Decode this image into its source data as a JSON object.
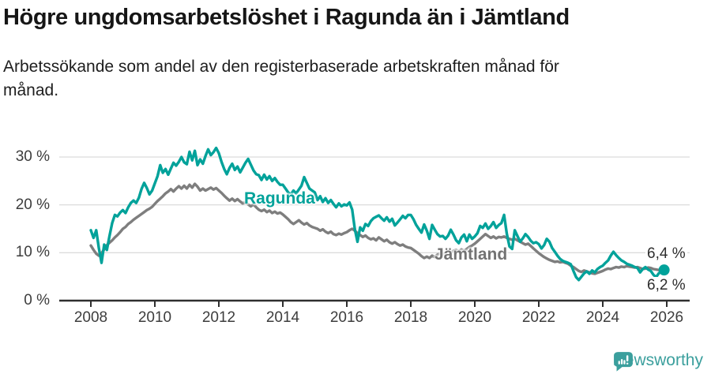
{
  "header": {
    "title": "Högre ungdomsarbetslöshet i Ragunda än i Jämtland",
    "subtitle": "Arbetssökande som andel av den registerbaserade arbetskraften månad för månad."
  },
  "chart_data": {
    "type": "line",
    "title": "Högre ungdomsarbetslöshet i Ragunda än i Jämtland",
    "subtitle": "Arbetssökande som andel av den registerbaserade arbetskraften månad för månad.",
    "unit": "%",
    "x_start_year": 2008,
    "x_step_months": 1,
    "ylim": [
      0,
      33
    ],
    "grid": "horizontal",
    "y_ticks": [
      {
        "v": 0,
        "label": "0 %"
      },
      {
        "v": 10,
        "label": "10 %"
      },
      {
        "v": 20,
        "label": "20 %"
      },
      {
        "v": 30,
        "label": "30 %"
      }
    ],
    "x_ticks": [
      {
        "v": 2008,
        "label": "2008"
      },
      {
        "v": 2010,
        "label": "2010"
      },
      {
        "v": 2012,
        "label": "2012"
      },
      {
        "v": 2014,
        "label": "2014"
      },
      {
        "v": 2016,
        "label": "2016"
      },
      {
        "v": 2018,
        "label": "2018"
      },
      {
        "v": 2020,
        "label": "2020"
      },
      {
        "v": 2022,
        "label": "2022"
      },
      {
        "v": 2024,
        "label": "2024"
      },
      {
        "v": 2026,
        "label": "2026"
      }
    ],
    "series": [
      {
        "name": "Ragunda",
        "color": "#00a29a",
        "end_label": "6,4 %",
        "end_dot": true,
        "values": [
          14.7,
          13.1,
          14.7,
          11.0,
          7.9,
          11.7,
          10.6,
          13.5,
          16.2,
          17.9,
          17.6,
          18.4,
          18.9,
          18.3,
          19.5,
          20.4,
          20.9,
          20.4,
          21.5,
          23.3,
          24.6,
          23.5,
          22.2,
          23.0,
          24.5,
          26.0,
          28.3,
          26.7,
          27.5,
          26.3,
          27.6,
          28.8,
          28.2,
          29.0,
          30.0,
          28.9,
          28.5,
          31.1,
          29.3,
          31.3,
          28.3,
          29.5,
          28.6,
          30.2,
          31.6,
          30.4,
          31.0,
          31.9,
          30.8,
          29.0,
          27.5,
          26.4,
          27.7,
          28.6,
          27.3,
          28.0,
          26.8,
          27.8,
          28.8,
          29.6,
          28.4,
          27.2,
          26.4,
          26.2,
          25.2,
          26.3,
          25.3,
          26.0,
          25.0,
          25.6,
          24.8,
          24.2,
          24.2,
          23.4,
          22.6,
          22.2,
          23.0,
          22.4,
          23.2,
          24.0,
          25.8,
          24.6,
          23.4,
          23.0,
          22.6,
          21.0,
          21.8,
          20.6,
          21.4,
          20.4,
          21.0,
          20.2,
          19.5,
          20.3,
          19.7,
          20.1,
          19.9,
          20.5,
          19.0,
          15.0,
          12.3,
          15.3,
          14.6,
          16.0,
          15.6,
          16.6,
          17.2,
          17.5,
          17.8,
          17.2,
          16.7,
          17.4,
          16.5,
          17.1,
          15.7,
          16.3,
          17.0,
          17.7,
          17.2,
          17.9,
          17.9,
          17.0,
          15.8,
          15.0,
          14.2,
          15.9,
          14.6,
          12.9,
          15.8,
          14.8,
          13.9,
          13.4,
          13.5,
          12.9,
          13.6,
          14.8,
          13.8,
          12.6,
          12.0,
          13.2,
          13.8,
          12.4,
          13.8,
          12.9,
          13.4,
          14.1,
          15.6,
          15.2,
          16.1,
          15.0,
          15.6,
          16.4,
          15.2,
          15.8,
          16.2,
          17.9,
          14.0,
          11.3,
          10.8,
          14.7,
          13.5,
          12.3,
          13.0,
          13.9,
          13.3,
          12.5,
          12.0,
          12.2,
          11.8,
          10.9,
          11.6,
          12.9,
          12.3,
          11.0,
          10.2,
          9.4,
          8.7,
          8.3,
          8.1,
          7.9,
          7.6,
          6.2,
          4.9,
          4.3,
          5.0,
          5.7,
          6.1,
          5.6,
          6.3,
          5.9,
          6.6,
          7.0,
          7.3,
          7.9,
          8.4,
          9.4,
          10.2,
          9.5,
          8.9,
          8.4,
          8.1,
          7.7,
          7.5,
          7.3,
          7.0,
          6.8,
          5.9,
          6.6,
          7.0,
          6.5,
          6.2,
          5.4,
          4.9,
          5.7,
          6.1,
          6.4
        ]
      },
      {
        "name": "Jämtland",
        "color": "#7e7e7e",
        "end_label": "6,2 %",
        "end_dot": false,
        "values": [
          11.5,
          10.6,
          9.8,
          9.4,
          9.9,
          10.7,
          11.6,
          12.1,
          12.6,
          13.2,
          13.7,
          14.3,
          15.0,
          15.4,
          16.0,
          16.4,
          16.9,
          17.3,
          17.7,
          18.1,
          18.5,
          18.9,
          19.2,
          19.6,
          20.2,
          20.8,
          21.3,
          21.8,
          22.4,
          22.8,
          23.3,
          22.8,
          23.4,
          23.9,
          23.4,
          24.0,
          23.4,
          24.2,
          23.6,
          24.4,
          23.8,
          23.0,
          23.4,
          23.0,
          23.3,
          23.6,
          23.2,
          23.5,
          23.0,
          22.5,
          21.9,
          21.4,
          20.9,
          21.3,
          20.8,
          21.2,
          20.7,
          20.3,
          20.6,
          20.1,
          19.7,
          20.1,
          19.5,
          19.0,
          18.7,
          19.0,
          18.5,
          18.8,
          18.3,
          18.6,
          18.2,
          18.4,
          18.0,
          17.5,
          17.0,
          16.4,
          16.0,
          16.4,
          16.8,
          16.3,
          15.9,
          16.2,
          15.7,
          15.4,
          15.2,
          15.0,
          14.6,
          14.9,
          14.4,
          14.1,
          14.4,
          13.9,
          13.7,
          14.0,
          13.8,
          14.1,
          14.3,
          14.7,
          15.0,
          14.6,
          14.1,
          13.7,
          13.3,
          13.6,
          13.1,
          12.8,
          13.0,
          12.6,
          13.2,
          12.8,
          12.4,
          12.7,
          12.2,
          11.9,
          12.2,
          11.8,
          11.5,
          11.7,
          11.3,
          11.1,
          11.0,
          10.6,
          10.2,
          9.8,
          9.3,
          8.9,
          9.2,
          8.9,
          9.4,
          9.1,
          9.6,
          9.9,
          9.7,
          10.0,
          10.3,
          10.0,
          10.4,
          10.6,
          10.3,
          10.7,
          10.4,
          10.8,
          11.2,
          11.5,
          11.9,
          12.4,
          12.9,
          13.4,
          13.9,
          13.5,
          13.1,
          13.4,
          13.0,
          13.3,
          13.2,
          13.4,
          13.1,
          12.9,
          12.7,
          12.9,
          12.6,
          12.3,
          12.0,
          11.7,
          11.9,
          11.4,
          10.9,
          10.4,
          9.9,
          9.5,
          9.1,
          8.8,
          8.5,
          8.3,
          8.1,
          8.2,
          8.0,
          8.1,
          7.9,
          7.7,
          7.3,
          7.0,
          6.6,
          6.2,
          6.0,
          6.3,
          6.1,
          5.9,
          5.7,
          5.6,
          5.8,
          6.0,
          6.2,
          6.5,
          6.7,
          6.6,
          6.8,
          7.0,
          6.9,
          7.1,
          7.0,
          7.2,
          7.1,
          7.0,
          6.9,
          7.0,
          6.8,
          6.6,
          6.7,
          6.9,
          6.8,
          6.6,
          6.5,
          6.4,
          6.3,
          6.2
        ]
      }
    ]
  },
  "footer": {
    "brand": "Newsworthy",
    "brand_color": "#3b9f9d",
    "logo_icon": "bar-chart-speech-bubble-icon"
  }
}
